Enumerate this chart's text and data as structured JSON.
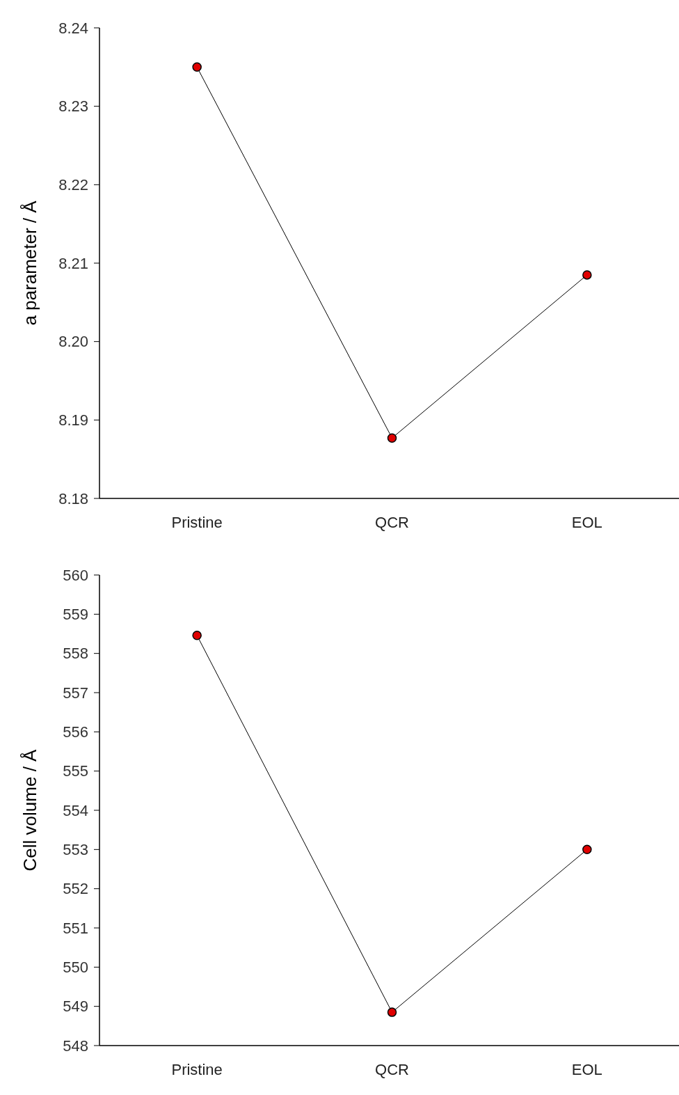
{
  "chart_data": [
    {
      "type": "line",
      "ylabel": "a parameter / Å",
      "categories": [
        "Pristine",
        "QCR",
        "EOL"
      ],
      "series": [
        {
          "color": "#e00000",
          "values": [
            8.235,
            8.1877,
            8.2085
          ]
        }
      ],
      "ylim": [
        8.18,
        8.24
      ],
      "yticks": [
        8.18,
        8.19,
        {
          "value": 8.2,
          "label": "8.20"
        },
        8.21,
        8.22,
        8.23,
        8.24
      ],
      "marker": "circle",
      "line_style": "solid"
    },
    {
      "type": "line",
      "ylabel": "Cell volume / Å",
      "categories": [
        "Pristine",
        "QCR",
        "EOL"
      ],
      "series": [
        {
          "color": "#e00000",
          "values": [
            558.46,
            548.85,
            553.0
          ]
        }
      ],
      "ylim": [
        548,
        560
      ],
      "yticks": [
        548,
        549,
        550,
        551,
        552,
        553,
        554,
        555,
        556,
        557,
        558,
        559,
        560
      ],
      "marker": "circle",
      "line_style": "solid"
    }
  ]
}
